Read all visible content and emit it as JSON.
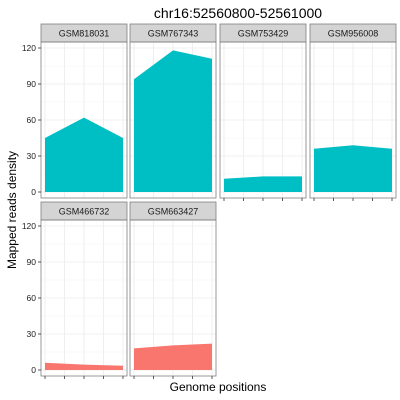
{
  "chart_data": {
    "type": "area",
    "title": "chr16:52560800-52561000",
    "xlabel": "Genome positions",
    "ylabel": "Mapped reads density",
    "ylim": [
      -5,
      125
    ],
    "yticks": [
      0,
      30,
      60,
      90,
      120
    ],
    "x": [
      52560800,
      52560900,
      52561000
    ],
    "grid": true,
    "facets": [
      {
        "name": "GSM818031",
        "color": "#00BFC4",
        "values": [
          45,
          62,
          45
        ]
      },
      {
        "name": "GSM767343",
        "color": "#00BFC4",
        "values": [
          94,
          118,
          111
        ]
      },
      {
        "name": "GSM753429",
        "color": "#00BFC4",
        "values": [
          11,
          13,
          13
        ]
      },
      {
        "name": "GSM956008",
        "color": "#00BFC4",
        "values": [
          36,
          39,
          36
        ]
      },
      {
        "name": "GSM466732",
        "color": "#F8766D",
        "values": [
          6,
          4.5,
          3.5
        ]
      },
      {
        "name": "GSM663427",
        "color": "#F8766D",
        "values": [
          18,
          20.5,
          22
        ]
      }
    ]
  }
}
